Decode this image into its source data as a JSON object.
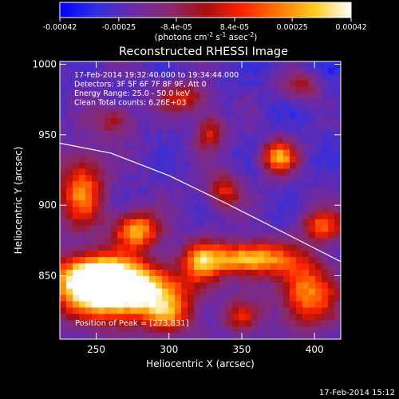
{
  "chart_data": {
    "type": "heatmap",
    "title": "Reconstructed RHESSI Image",
    "xlabel": "Heliocentric X (arcsec)",
    "ylabel": "Heliocentric Y (arcsec)",
    "xlim": [
      225,
      418
    ],
    "ylim": [
      805,
      1002
    ],
    "x_ticks": [
      250,
      300,
      350,
      400
    ],
    "y_ticks": [
      850,
      900,
      950,
      1000
    ],
    "colorbar": {
      "colormap": [
        "#0000ff",
        "#3030e0",
        "#6a2aa8",
        "#8a2a70",
        "#a51010",
        "#ff2200",
        "#ff7700",
        "#ffcc22",
        "#ffffff"
      ],
      "range": [
        -0.00042,
        0.00042
      ],
      "tick_labels": [
        "-0.00042",
        "-0.00025",
        "-8.4e-05",
        "8.4e-05",
        "0.00025",
        "0.00042"
      ],
      "tick_values": [
        -0.00042,
        -0.00025,
        -8.4e-05,
        8.4e-05,
        0.00025,
        0.00042
      ],
      "label": "(photons cm",
      "label_sup1": "-2",
      "label_mid": " s",
      "label_sup2": "-1",
      "label_end": " asec",
      "label_sup3": "-2",
      "label_close": ")"
    },
    "annotations": [
      "17-Feb-2014 19:32:40.000  to 19:34:44.000",
      "Detectors: 3F 5F 6F 7F 8F 9F, Att 0",
      "Energy Range: 25.0 - 50.0 keV",
      "Clean    Total counts: 6.26E+03"
    ],
    "peak_label": "Position of Peak = [273,831]",
    "peak": [
      273,
      831
    ],
    "limb": [
      [
        225,
        944
      ],
      [
        260,
        937
      ],
      [
        300,
        921
      ],
      [
        340,
        901
      ],
      [
        380,
        880
      ],
      [
        418,
        860
      ]
    ],
    "sources": [
      {
        "x": 268,
        "y": 838,
        "sx": 30,
        "sy": 14,
        "amp": 1.5
      },
      {
        "x": 250,
        "y": 850,
        "sx": 18,
        "sy": 11,
        "amp": 1.1
      },
      {
        "x": 278,
        "y": 882,
        "sx": 11,
        "sy": 9,
        "amp": 1.0
      },
      {
        "x": 240,
        "y": 910,
        "sx": 11,
        "sy": 18,
        "amp": 0.85
      },
      {
        "x": 322,
        "y": 860,
        "sx": 9,
        "sy": 10,
        "amp": 0.7
      },
      {
        "x": 355,
        "y": 862,
        "sx": 20,
        "sy": 8,
        "amp": 1.15
      },
      {
        "x": 395,
        "y": 838,
        "sx": 14,
        "sy": 16,
        "amp": 0.9
      },
      {
        "x": 406,
        "y": 885,
        "sx": 10,
        "sy": 8,
        "amp": 0.75
      },
      {
        "x": 376,
        "y": 934,
        "sx": 8,
        "sy": 8,
        "amp": 0.95
      },
      {
        "x": 338,
        "y": 910,
        "sx": 8,
        "sy": 9,
        "amp": 0.6
      },
      {
        "x": 310,
        "y": 976,
        "sx": 11,
        "sy": 7,
        "amp": 0.6
      },
      {
        "x": 328,
        "y": 952,
        "sx": 7,
        "sy": 9,
        "amp": 0.55
      },
      {
        "x": 390,
        "y": 985,
        "sx": 10,
        "sy": 7,
        "amp": 0.5
      },
      {
        "x": 262,
        "y": 960,
        "sx": 10,
        "sy": 8,
        "amp": 0.45
      },
      {
        "x": 300,
        "y": 820,
        "sx": 10,
        "sy": 8,
        "amp": 0.55
      },
      {
        "x": 350,
        "y": 820,
        "sx": 9,
        "sy": 8,
        "amp": 0.5
      }
    ],
    "grid": false,
    "legend": "none"
  },
  "footer": {
    "timestamp": "17-Feb-2014 15:12"
  }
}
